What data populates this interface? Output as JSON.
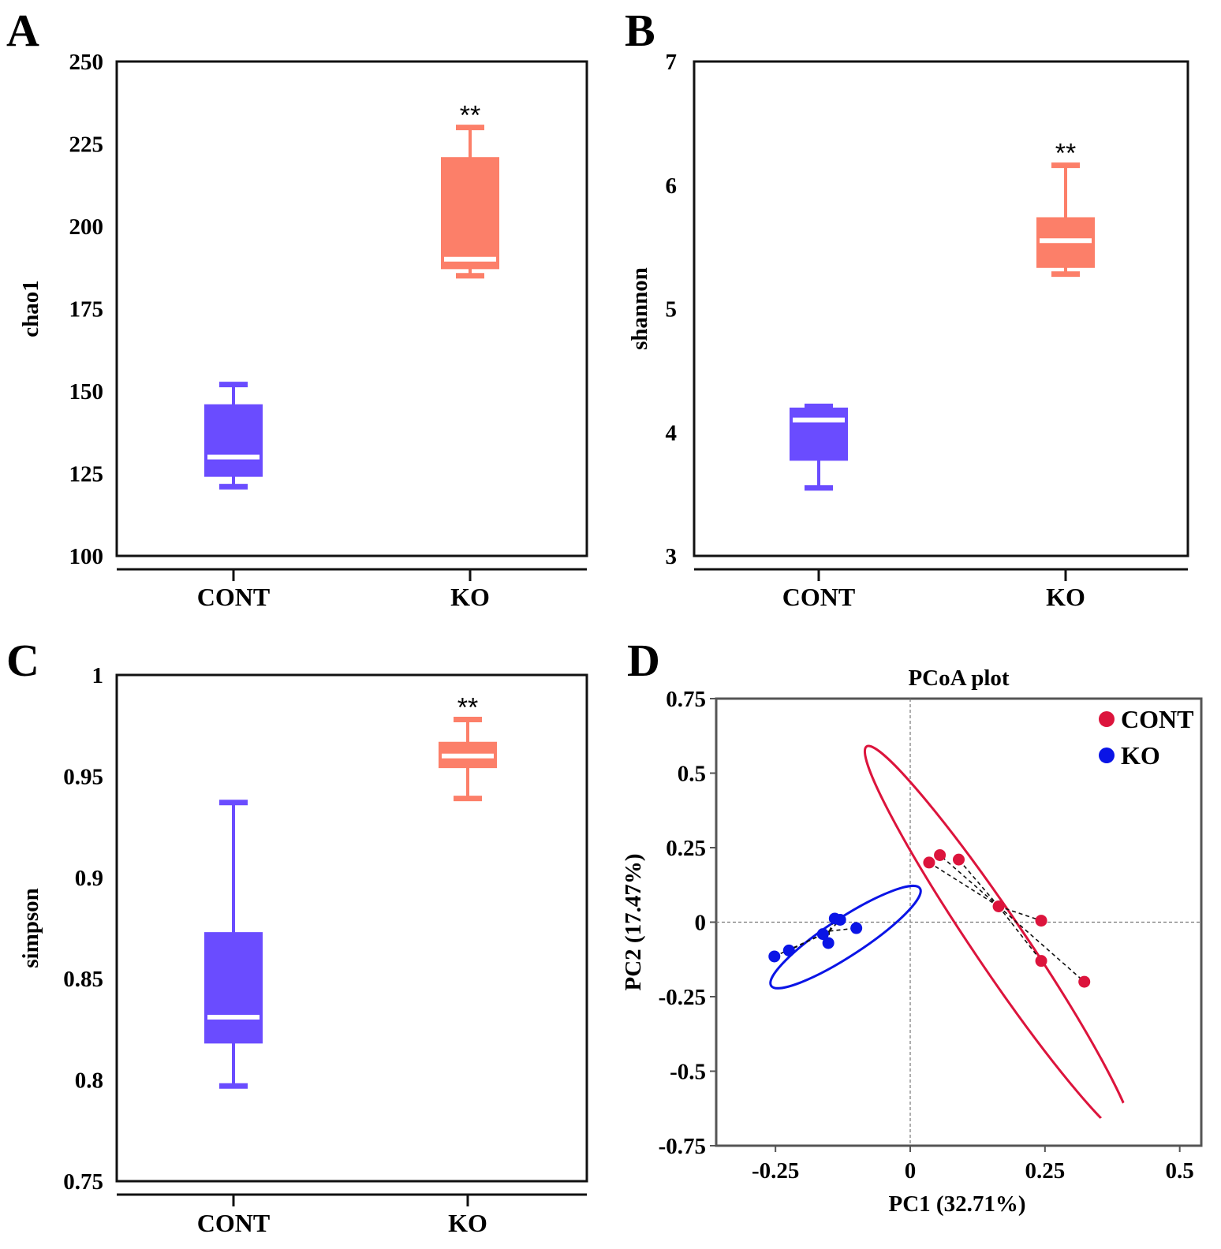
{
  "panels": {
    "A": {
      "letter": "A"
    },
    "B": {
      "letter": "B"
    },
    "C": {
      "letter": "C"
    },
    "D": {
      "letter": "D"
    }
  },
  "colors": {
    "cont_box": "#6a4cff",
    "ko_box": "#fc7f69",
    "cont_point": "#dc143c",
    "ko_point": "#0a14e6",
    "median": "#ffffff"
  },
  "chart_data": [
    {
      "id": "A",
      "type": "box",
      "ylabel": "chao1",
      "ylim": [
        100,
        250
      ],
      "yticks": [
        100,
        125,
        150,
        175,
        200,
        225,
        250
      ],
      "categories": [
        "CONT",
        "KO"
      ],
      "series": [
        {
          "name": "CONT",
          "min": 121,
          "q1": 124,
          "median": 130,
          "q3": 146,
          "max": 152
        },
        {
          "name": "KO",
          "min": 185,
          "q1": 187,
          "median": 190,
          "q3": 221,
          "max": 230
        }
      ],
      "significance": {
        "KO": "**"
      }
    },
    {
      "id": "B",
      "type": "box",
      "ylabel": "shannon",
      "ylim": [
        3,
        7
      ],
      "yticks": [
        3,
        4,
        5,
        6,
        7
      ],
      "categories": [
        "CONT",
        "KO"
      ],
      "series": [
        {
          "name": "CONT",
          "min": 3.55,
          "q1": 3.77,
          "median": 4.1,
          "q3": 4.2,
          "max": 4.21
        },
        {
          "name": "KO",
          "min": 5.28,
          "q1": 5.33,
          "median": 5.55,
          "q3": 5.74,
          "max": 6.16
        }
      ],
      "significance": {
        "KO": "**"
      }
    },
    {
      "id": "C",
      "type": "box",
      "ylabel": "simpson",
      "ylim": [
        0.75,
        1
      ],
      "yticks": [
        0.75,
        0.8,
        0.85,
        0.9,
        0.95,
        1
      ],
      "ytick_labels": [
        "0.75",
        "0.8",
        "0.85",
        "0.9",
        "0.95",
        "1"
      ],
      "categories": [
        "CONT",
        "KO"
      ],
      "series": [
        {
          "name": "CONT",
          "min": 0.797,
          "q1": 0.818,
          "median": 0.831,
          "q3": 0.873,
          "max": 0.937
        },
        {
          "name": "KO",
          "min": 0.939,
          "q1": 0.954,
          "median": 0.96,
          "q3": 0.967,
          "max": 0.978
        }
      ],
      "significance": {
        "KO": "**"
      }
    },
    {
      "id": "D",
      "type": "scatter",
      "title": "PCoA plot",
      "xlabel": "PC1 (32.71%)",
      "ylabel": "PC2 (17.47%)",
      "xlim": [
        -0.36,
        0.54
      ],
      "ylim": [
        -0.75,
        0.75
      ],
      "xticks": [
        -0.25,
        0,
        0.25,
        0.5
      ],
      "xtick_labels": [
        "-0.25",
        "0",
        "0.25",
        "0.5"
      ],
      "yticks": [
        -0.75,
        -0.5,
        -0.25,
        0,
        0.25,
        0.5,
        0.75
      ],
      "ytick_labels": [
        "-0.75",
        "-0.5",
        "-0.25",
        "0",
        "0.25",
        "0.5",
        "0.75"
      ],
      "legend_position": "top-right",
      "series": [
        {
          "name": "CONT",
          "centroid": [
            0.164,
            0.053
          ],
          "points": [
            [
              0.035,
              0.2
            ],
            [
              0.055,
              0.225
            ],
            [
              0.09,
              0.21
            ],
            [
              0.164,
              0.053
            ],
            [
              0.243,
              0.005
            ],
            [
              0.243,
              -0.13
            ],
            [
              0.323,
              -0.2
            ]
          ],
          "ellipse": {
            "center": [
              0.165,
              -0.07
            ],
            "semi_major": 0.44,
            "semi_minor": 0.048,
            "angle_deg": -56
          }
        },
        {
          "name": "KO",
          "centroid": [
            -0.15,
            -0.03
          ],
          "points": [
            [
              -0.252,
              -0.115
            ],
            [
              -0.225,
              -0.095
            ],
            [
              -0.162,
              -0.04
            ],
            [
              -0.152,
              -0.07
            ],
            [
              -0.14,
              0.012
            ],
            [
              -0.13,
              0.008
            ],
            [
              -0.1,
              -0.02
            ]
          ],
          "ellipse": {
            "center": [
              -0.12,
              -0.05
            ],
            "semi_major": 0.165,
            "semi_minor": 0.035,
            "angle_deg": 33.2
          }
        }
      ]
    }
  ]
}
